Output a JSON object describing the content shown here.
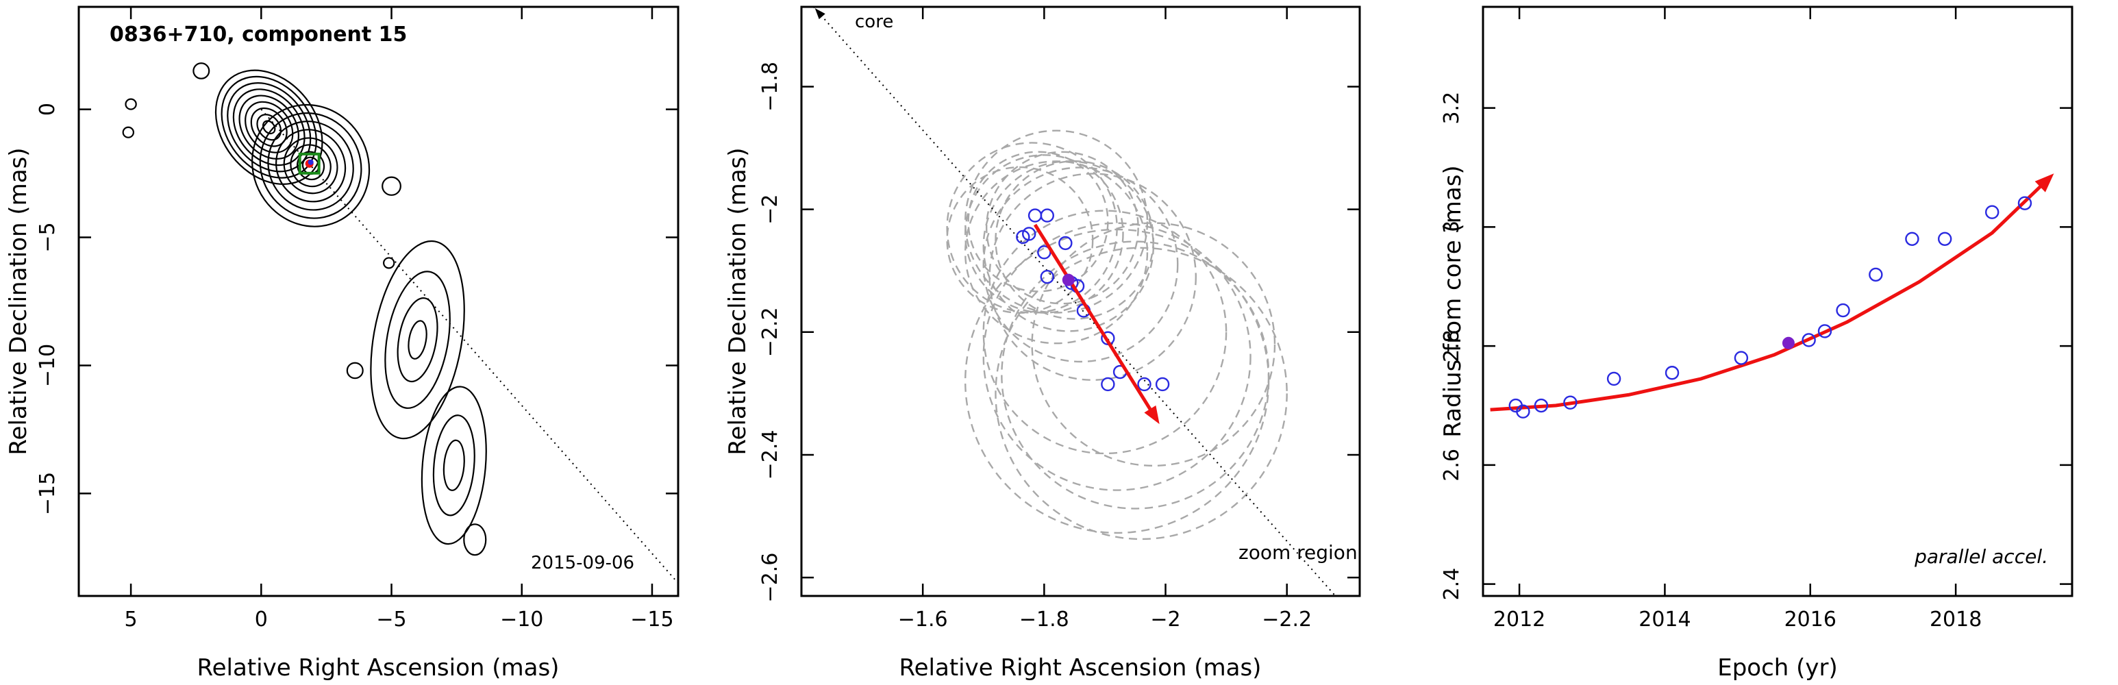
{
  "colors": {
    "data_points": "#2a2ae0",
    "highlight_point": "#7a20c8",
    "fit": "#ee1111",
    "ellipses": "#a8a8a8",
    "marker_box": "#1a8a1a"
  },
  "chart_data": [
    {
      "type": "contour",
      "title": "0836+710, component 15",
      "annotations": {
        "date": "2015-09-06"
      },
      "xlabel": "Relative Right Ascension (mas)",
      "ylabel": "Relative Declination (mas)",
      "xlim": [
        7,
        -16
      ],
      "ylim": [
        -19,
        4
      ],
      "x_ticks": [
        5,
        0,
        -5,
        -10,
        -15
      ],
      "y_ticks": [
        0,
        -5,
        -10,
        -15
      ],
      "x_tick_labels": [
        "5",
        "0",
        "−5",
        "−10",
        "−15"
      ],
      "y_tick_labels": [
        "0",
        "−5",
        "−10",
        "−15"
      ],
      "component_position": [
        -1.85,
        -2.12
      ],
      "direction_line": {
        "from": [
          0,
          0
        ],
        "to": [
          -16,
          -18.5
        ],
        "style": "dotted"
      },
      "islands": [
        {
          "center": [
            -0.3,
            -0.7
          ],
          "radii": [
            1.8,
            1.6,
            1.4,
            1.2,
            1.0,
            0.8,
            0.6,
            0.4,
            0.2
          ],
          "rx_scale": 1.0,
          "ry_scale": 1.35,
          "rotation_deg": -38
        },
        {
          "center": [
            -1.9,
            -2.2
          ],
          "radii": [
            2.2,
            1.9,
            1.6,
            1.3,
            1.0,
            0.75,
            0.5,
            0.3
          ],
          "rx_scale": 1.0,
          "ry_scale": 1.1,
          "rotation_deg": -30
        },
        {
          "center": [
            -6.0,
            -9.0
          ],
          "radii": [
            2.6,
            1.8,
            1.1,
            0.5
          ],
          "rx_scale": 0.65,
          "ry_scale": 1.5,
          "rotation_deg": 10
        },
        {
          "center": [
            -7.4,
            -13.9
          ],
          "radii": [
            2.2,
            1.4,
            0.7
          ],
          "rx_scale": 0.55,
          "ry_scale": 1.4,
          "rotation_deg": 5
        },
        {
          "center": [
            -8.2,
            -16.8
          ],
          "radii": [
            0.6
          ],
          "rx_scale": 0.7,
          "ry_scale": 1.0,
          "rotation_deg": 0
        },
        {
          "center": [
            -5.0,
            -3.0
          ],
          "radii": [
            0.35
          ],
          "rx_scale": 1.0,
          "ry_scale": 1.0,
          "rotation_deg": 0
        },
        {
          "center": [
            2.3,
            1.5
          ],
          "radii": [
            0.3
          ],
          "rx_scale": 1.0,
          "ry_scale": 1.0,
          "rotation_deg": 0
        },
        {
          "center": [
            5.0,
            0.2
          ],
          "radii": [
            0.2
          ],
          "rx_scale": 1.0,
          "ry_scale": 1.0,
          "rotation_deg": 0
        },
        {
          "center": [
            5.1,
            -0.9
          ],
          "radii": [
            0.2
          ],
          "rx_scale": 1.0,
          "ry_scale": 1.0,
          "rotation_deg": 0
        },
        {
          "center": [
            -4.9,
            -6.0
          ],
          "radii": [
            0.2
          ],
          "rx_scale": 1.0,
          "ry_scale": 1.0,
          "rotation_deg": 0
        },
        {
          "center": [
            -3.6,
            -10.2
          ],
          "radii": [
            0.3
          ],
          "rx_scale": 1.0,
          "ry_scale": 1.0,
          "rotation_deg": 0
        }
      ]
    },
    {
      "type": "scatter",
      "annotations": {
        "origin_label": "core",
        "region_label": "zoom region"
      },
      "xlabel": "Relative Right Ascension (mas)",
      "ylabel": "Relative Declination (mas)",
      "xlim": [
        -1.4,
        -2.32
      ],
      "ylim": [
        -2.63,
        -1.67
      ],
      "x_ticks": [
        -1.6,
        -1.8,
        -2.0,
        -2.2
      ],
      "y_ticks": [
        -1.8,
        -2.0,
        -2.2,
        -2.4,
        -2.6
      ],
      "x_tick_labels": [
        "−1.6",
        "−1.8",
        "−2",
        "−2.2"
      ],
      "y_tick_labels": [
        "−1.8",
        "−2",
        "−2.2",
        "−2.4",
        "−2.6"
      ],
      "points": [
        [
          -1.765,
          -2.045
        ],
        [
          -1.775,
          -2.04
        ],
        [
          -1.785,
          -2.01
        ],
        [
          -1.805,
          -2.01
        ],
        [
          -1.8,
          -2.07
        ],
        [
          -1.805,
          -2.11
        ],
        [
          -1.835,
          -2.055
        ],
        [
          -1.845,
          -2.12
        ],
        [
          -1.855,
          -2.125
        ],
        [
          -1.865,
          -2.165
        ],
        [
          -1.905,
          -2.21
        ],
        [
          -1.925,
          -2.265
        ],
        [
          -1.905,
          -2.285
        ],
        [
          -1.965,
          -2.285
        ],
        [
          -1.995,
          -2.285
        ]
      ],
      "highlight_point": [
        -1.84,
        -2.115
      ],
      "fit_vector": {
        "from": [
          -1.785,
          -2.025
        ],
        "to": [
          -1.99,
          -2.35
        ]
      },
      "direction_line": {
        "from": [
          -1.42,
          -1.67
        ],
        "to": [
          -2.28,
          -2.63
        ],
        "style": "dotted"
      },
      "error_ellipses": [
        {
          "center": [
            -1.78,
            -2.03
          ],
          "r": 0.14
        },
        {
          "center": [
            -1.8,
            -2.04
          ],
          "r": 0.13
        },
        {
          "center": [
            -1.82,
            -2.02
          ],
          "r": 0.15
        },
        {
          "center": [
            -1.76,
            -2.05
          ],
          "r": 0.12
        },
        {
          "center": [
            -1.84,
            -2.06
          ],
          "r": 0.14
        },
        {
          "center": [
            -1.79,
            -2.02
          ],
          "r": 0.115
        },
        {
          "center": [
            -1.83,
            -2.03
          ],
          "r": 0.125
        },
        {
          "center": [
            -1.85,
            -2.05
          ],
          "r": 0.13
        },
        {
          "center": [
            -1.86,
            -2.09
          ],
          "r": 0.16
        },
        {
          "center": [
            -1.88,
            -2.11
          ],
          "r": 0.17
        },
        {
          "center": [
            -1.82,
            -2.07
          ],
          "r": 0.15
        },
        {
          "center": [
            -1.9,
            -2.2
          ],
          "r": 0.2
        },
        {
          "center": [
            -1.92,
            -2.24
          ],
          "r": 0.22
        },
        {
          "center": [
            -1.95,
            -2.27
          ],
          "r": 0.22
        },
        {
          "center": [
            -1.96,
            -2.3
          ],
          "r": 0.24
        },
        {
          "center": [
            -1.92,
            -2.28
          ],
          "r": 0.25
        },
        {
          "center": [
            -1.98,
            -2.22
          ],
          "r": 0.2
        }
      ]
    },
    {
      "type": "scatter",
      "annotations": {
        "label": "parallel accel."
      },
      "xlabel": "Epoch (yr)",
      "ylabel": "Radius from core (mas)",
      "xlim": [
        2011.5,
        2019.6
      ],
      "ylim": [
        2.38,
        3.37
      ],
      "x_ticks": [
        2012,
        2014,
        2016,
        2018
      ],
      "y_ticks": [
        2.4,
        2.6,
        2.8,
        3.0,
        3.2
      ],
      "x_tick_labels": [
        "2012",
        "2014",
        "2016",
        "2018"
      ],
      "y_tick_labels": [
        "2.4",
        "2.6",
        "2.8",
        "3",
        "3.2"
      ],
      "points": [
        [
          2011.95,
          2.7
        ],
        [
          2012.05,
          2.69
        ],
        [
          2012.3,
          2.7
        ],
        [
          2012.7,
          2.705
        ],
        [
          2013.3,
          2.745
        ],
        [
          2014.1,
          2.755
        ],
        [
          2015.05,
          2.78
        ],
        [
          2015.98,
          2.81
        ],
        [
          2016.2,
          2.825
        ],
        [
          2016.45,
          2.86
        ],
        [
          2016.9,
          2.92
        ],
        [
          2017.4,
          2.98
        ],
        [
          2017.85,
          2.98
        ],
        [
          2018.5,
          3.025
        ],
        [
          2018.95,
          3.04
        ]
      ],
      "highlight_point": [
        2015.7,
        2.805
      ],
      "fit_curve": {
        "x": [
          2011.6,
          2012.5,
          2013.5,
          2014.5,
          2015.5,
          2016.5,
          2017.5,
          2018.5,
          2019.35
        ],
        "y": [
          2.693,
          2.7,
          2.718,
          2.745,
          2.785,
          2.84,
          2.908,
          2.99,
          3.09
        ]
      }
    }
  ]
}
